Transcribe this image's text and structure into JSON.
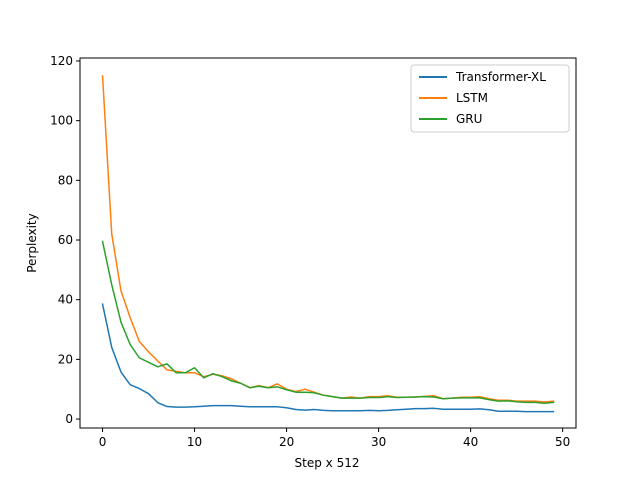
{
  "chart_data": {
    "type": "line",
    "title": "",
    "xlabel": "Step x 512",
    "ylabel": "Perplexity",
    "xlim": [
      -2.45,
      51.45
    ],
    "ylim": [
      -3,
      121
    ],
    "xticks": [
      0,
      10,
      20,
      30,
      40,
      50
    ],
    "yticks": [
      0,
      20,
      40,
      60,
      80,
      100,
      120
    ],
    "grid": false,
    "legend_position": "top-right",
    "x": [
      0,
      1,
      2,
      3,
      4,
      5,
      6,
      7,
      8,
      9,
      10,
      11,
      12,
      13,
      14,
      15,
      16,
      17,
      18,
      19,
      20,
      21,
      22,
      23,
      24,
      25,
      26,
      27,
      28,
      29,
      30,
      31,
      32,
      33,
      34,
      35,
      36,
      37,
      38,
      39,
      40,
      41,
      42,
      43,
      44,
      45,
      46,
      47,
      48,
      49
    ],
    "series": [
      {
        "name": "Transformer-XL",
        "color": "#1f77b4",
        "values": [
          38.5,
          24,
          15.8,
          11.5,
          10.2,
          8.5,
          5.5,
          4.2,
          4.0,
          4.0,
          4.1,
          4.3,
          4.5,
          4.5,
          4.5,
          4.3,
          4.1,
          4.1,
          4.1,
          4.1,
          3.8,
          3.2,
          3.0,
          3.2,
          2.9,
          2.8,
          2.8,
          2.8,
          2.8,
          2.9,
          2.8,
          2.9,
          3.1,
          3.3,
          3.5,
          3.5,
          3.6,
          3.3,
          3.3,
          3.3,
          3.3,
          3.4,
          3.1,
          2.6,
          2.6,
          2.6,
          2.5,
          2.5,
          2.5,
          2.5
        ]
      },
      {
        "name": "LSTM",
        "color": "#ff7f0e",
        "values": [
          115,
          62,
          43,
          34,
          26,
          22.5,
          19.5,
          16.5,
          16,
          15.5,
          15.5,
          14.2,
          15,
          14.5,
          13.5,
          12,
          10.5,
          11.2,
          10.5,
          11.8,
          10,
          9.2,
          10,
          9,
          8,
          7.5,
          7,
          7.4,
          7,
          7.5,
          7.5,
          7.8,
          7.3,
          7.3,
          7.4,
          7.6,
          7.8,
          6.8,
          7,
          7.3,
          7.3,
          7.5,
          6.8,
          6.3,
          6.3,
          6.0,
          6.0,
          6.0,
          5.7,
          6.0
        ]
      },
      {
        "name": "GRU",
        "color": "#2ca02c",
        "values": [
          59.5,
          45,
          32.5,
          25,
          20.5,
          19,
          17.5,
          18.5,
          15.5,
          15.5,
          17.2,
          13.8,
          15.2,
          14.2,
          12.8,
          12,
          10.5,
          11,
          10.5,
          10.8,
          9.8,
          9,
          9,
          8.8,
          8,
          7.5,
          7,
          7,
          7,
          7.2,
          7.2,
          7.5,
          7.2,
          7.3,
          7.4,
          7.5,
          7.4,
          6.8,
          7,
          7.1,
          7.1,
          7.1,
          6.5,
          6,
          6.1,
          5.8,
          5.6,
          5.6,
          5.3,
          5.6
        ]
      }
    ]
  }
}
